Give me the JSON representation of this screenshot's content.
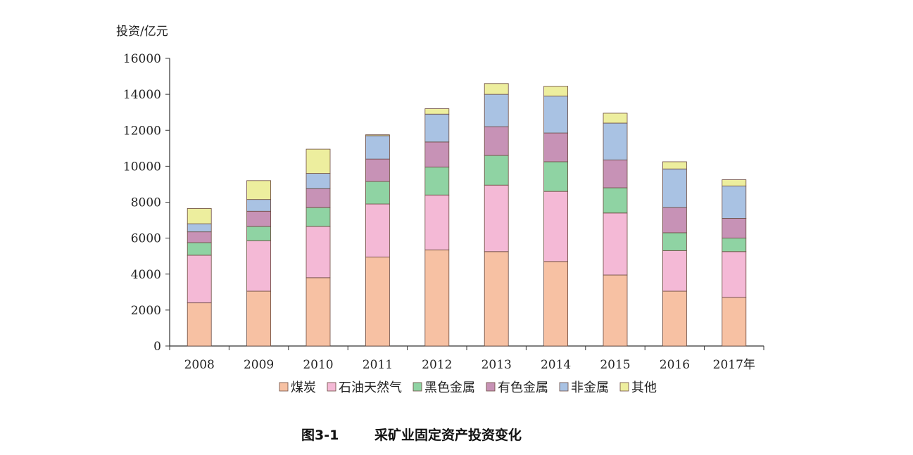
{
  "chart_data": {
    "type": "bar",
    "stacked": true,
    "caption_num": "图3-1",
    "caption_title": "采矿业固定资产投资变化",
    "ylabel": "投资/亿元",
    "xlabel": "",
    "ylim": [
      0,
      16000
    ],
    "yticks": [
      "0",
      "2000",
      "4000",
      "6000",
      "8000",
      "10000",
      "12000",
      "14000",
      "16000"
    ],
    "categories": [
      "2008",
      "2009",
      "2010",
      "2011",
      "2012",
      "2013",
      "2014",
      "2015",
      "2016",
      "2017年"
    ],
    "legend_position": "bottom",
    "grid": false,
    "series": [
      {
        "name": "煤炭",
        "color": "#F7C1A3",
        "values": [
          2400,
          3050,
          3800,
          4950,
          5350,
          5250,
          4700,
          3950,
          3050,
          2700
        ]
      },
      {
        "name": "石油天然气",
        "color": "#F4B9D6",
        "values": [
          2650,
          2800,
          2850,
          2950,
          3050,
          3700,
          3900,
          3450,
          2250,
          2550
        ]
      },
      {
        "name": "黑色金属",
        "color": "#8FD3A3",
        "values": [
          700,
          800,
          1050,
          1250,
          1550,
          1650,
          1650,
          1400,
          1000,
          750
        ]
      },
      {
        "name": "有色金属",
        "color": "#C792B6",
        "values": [
          600,
          850,
          1050,
          1250,
          1400,
          1600,
          1600,
          1550,
          1400,
          1100
        ]
      },
      {
        "name": "非金属",
        "color": "#A9C2E3",
        "values": [
          450,
          650,
          850,
          1300,
          1550,
          1800,
          2050,
          2050,
          2150,
          1800
        ]
      },
      {
        "name": "其他",
        "color": "#EDEE9E",
        "values": [
          850,
          1050,
          1350,
          50,
          300,
          600,
          550,
          550,
          400,
          350
        ]
      }
    ]
  }
}
